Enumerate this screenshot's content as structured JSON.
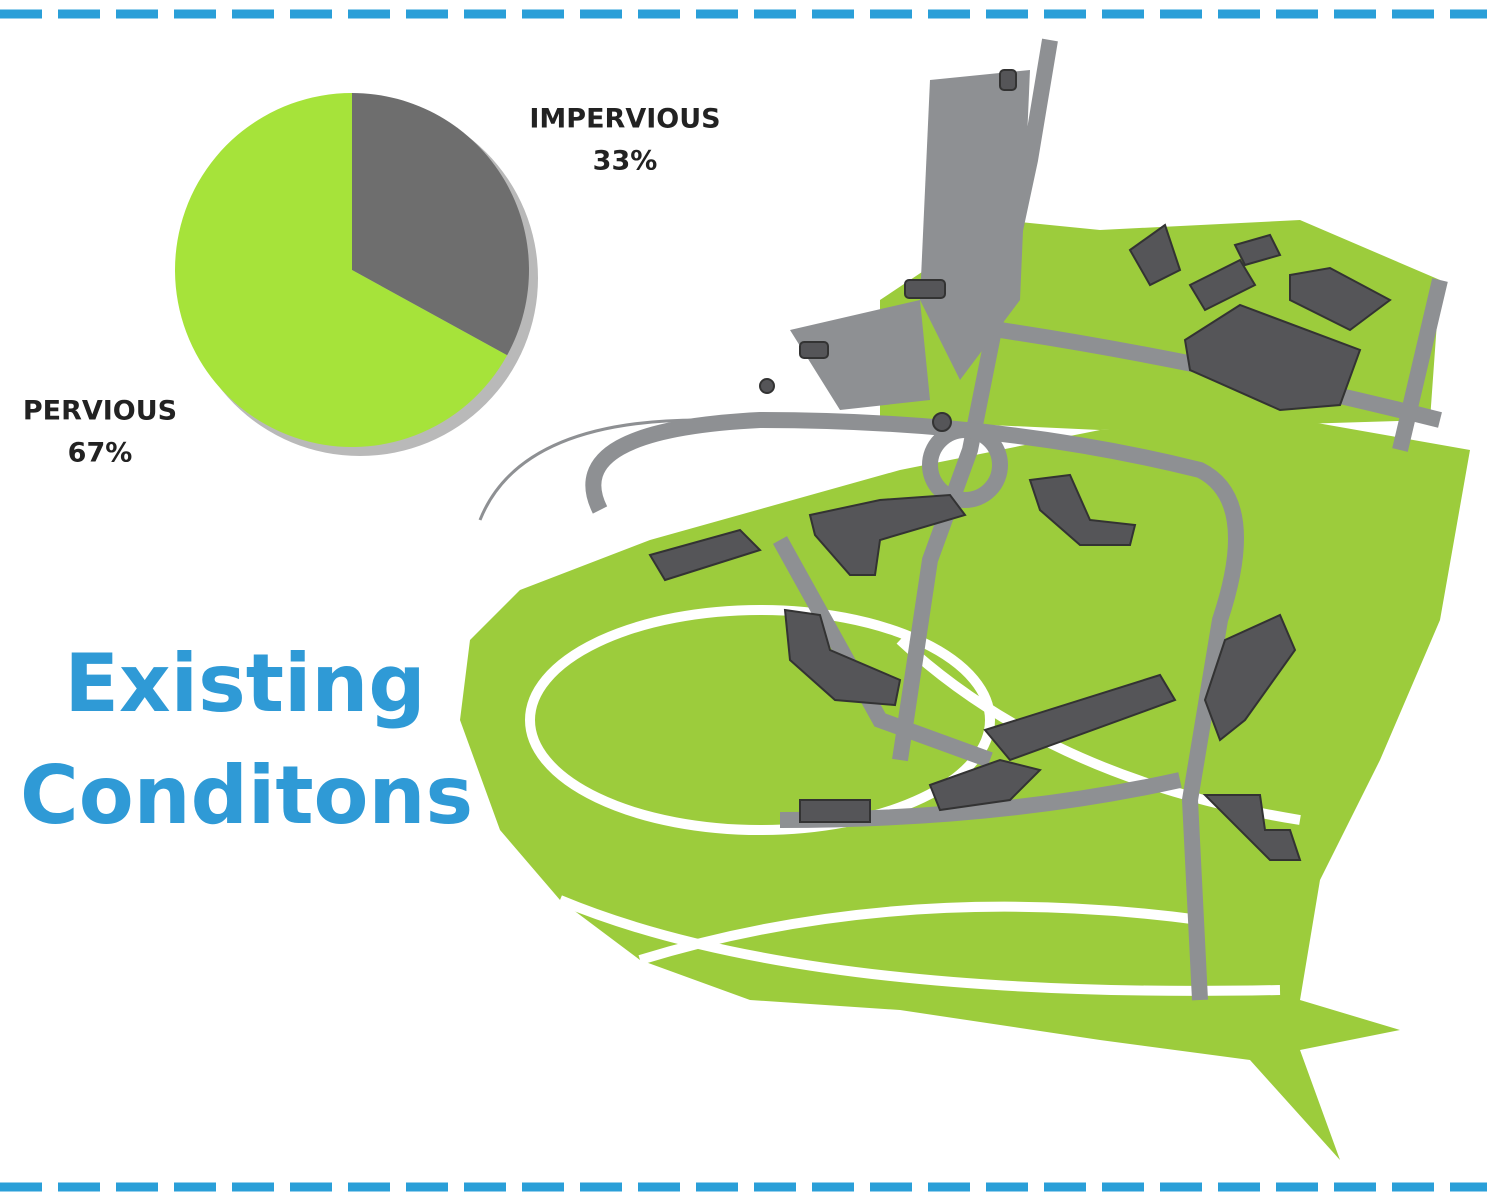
{
  "chart_data": {
    "type": "pie",
    "title": "Existing Conditons",
    "categories": [
      "IMPERVIOUS",
      "PERVIOUS"
    ],
    "values": [
      33,
      67
    ],
    "value_labels": [
      "33%",
      "67%"
    ],
    "colors": [
      "#6e6e6e",
      "#a6e33a"
    ]
  }
}
